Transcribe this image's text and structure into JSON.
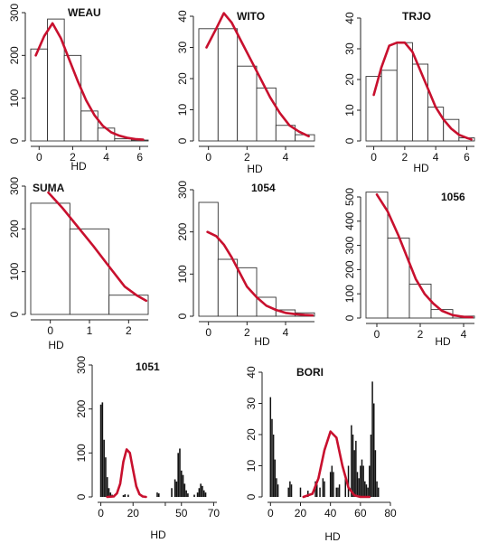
{
  "figure": {
    "colors": {
      "bar_edge": "#333333",
      "bar_fill_solid": "#111111",
      "curve": "#c8102e"
    }
  },
  "chart_data": [
    {
      "type": "bar",
      "title": "WEAU",
      "xlabel": "HD",
      "xlim": [
        -0.5,
        6.5
      ],
      "ylim": [
        0,
        300
      ],
      "xticks": [
        0,
        2,
        4,
        6
      ],
      "yticks": [
        0,
        100,
        200,
        300
      ],
      "bins": [
        [
          -0.5,
          0.5,
          215
        ],
        [
          0.5,
          1.5,
          285
        ],
        [
          1.5,
          2.5,
          200
        ],
        [
          2.5,
          3.5,
          70
        ],
        [
          3.5,
          4.5,
          30
        ],
        [
          4.5,
          5.5,
          5
        ],
        [
          5.5,
          6.5,
          2
        ]
      ],
      "curve": [
        [
          -0.2,
          200
        ],
        [
          0.3,
          245
        ],
        [
          0.8,
          275
        ],
        [
          1.3,
          240
        ],
        [
          1.8,
          190
        ],
        [
          2.3,
          140
        ],
        [
          2.8,
          95
        ],
        [
          3.3,
          60
        ],
        [
          3.8,
          35
        ],
        [
          4.3,
          20
        ],
        [
          4.8,
          12
        ],
        [
          5.3,
          7
        ],
        [
          5.8,
          4
        ],
        [
          6.2,
          3
        ]
      ]
    },
    {
      "type": "bar",
      "title": "WITO",
      "xlabel": "HD",
      "xlim": [
        -0.5,
        5.5
      ],
      "ylim": [
        0,
        40
      ],
      "xticks": [
        0,
        2,
        4
      ],
      "yticks": [
        0,
        10,
        20,
        30,
        40
      ],
      "bins": [
        [
          -0.5,
          0.5,
          36
        ],
        [
          0.5,
          1.5,
          36
        ],
        [
          1.5,
          2.5,
          24
        ],
        [
          2.5,
          3.5,
          17
        ],
        [
          3.5,
          4.5,
          5
        ],
        [
          4.5,
          5.5,
          2
        ]
      ],
      "curve": [
        [
          -0.1,
          30
        ],
        [
          0.4,
          36
        ],
        [
          0.8,
          41
        ],
        [
          1.2,
          38
        ],
        [
          1.7,
          32
        ],
        [
          2.2,
          26
        ],
        [
          2.7,
          20
        ],
        [
          3.2,
          14
        ],
        [
          3.7,
          9
        ],
        [
          4.2,
          5
        ],
        [
          4.7,
          3
        ],
        [
          5.2,
          1.5
        ]
      ]
    },
    {
      "type": "bar",
      "title": "TRJO",
      "xlabel": "HD",
      "xlim": [
        -0.5,
        6.5
      ],
      "ylim": [
        0,
        40
      ],
      "xticks": [
        0,
        2,
        4,
        6
      ],
      "yticks": [
        0,
        10,
        20,
        30,
        40
      ],
      "bins": [
        [
          -0.5,
          0.5,
          21
        ],
        [
          0.5,
          1.5,
          23
        ],
        [
          1.5,
          2.5,
          32
        ],
        [
          2.5,
          3.5,
          25
        ],
        [
          3.5,
          4.5,
          11
        ],
        [
          4.5,
          5.5,
          7
        ],
        [
          5.5,
          6.5,
          1
        ]
      ],
      "curve": [
        [
          0,
          15
        ],
        [
          0.5,
          24
        ],
        [
          1,
          31
        ],
        [
          1.5,
          32
        ],
        [
          2,
          32
        ],
        [
          2.5,
          29
        ],
        [
          3,
          23
        ],
        [
          3.5,
          17
        ],
        [
          4,
          11
        ],
        [
          4.5,
          7
        ],
        [
          5,
          4
        ],
        [
          5.5,
          2
        ],
        [
          6,
          1
        ],
        [
          6.3,
          0.5
        ]
      ]
    },
    {
      "type": "bar",
      "title": "SUMA",
      "xlabel": "HD",
      "xlim": [
        -0.5,
        2.5
      ],
      "ylim": [
        0,
        300
      ],
      "xticks": [
        0,
        1,
        2
      ],
      "yticks": [
        0,
        100,
        200,
        300
      ],
      "bins": [
        [
          -0.5,
          0.5,
          260
        ],
        [
          0.5,
          1.5,
          200
        ],
        [
          1.5,
          2.5,
          45
        ]
      ],
      "curve": [
        [
          -0.05,
          285
        ],
        [
          0.3,
          250
        ],
        [
          0.7,
          205
        ],
        [
          1.1,
          160
        ],
        [
          1.5,
          112
        ],
        [
          1.9,
          65
        ],
        [
          2.2,
          45
        ],
        [
          2.45,
          32
        ]
      ]
    },
    {
      "type": "bar",
      "title": "1054",
      "xlabel": "HD",
      "xlim": [
        -0.5,
        5.5
      ],
      "ylim": [
        0,
        300
      ],
      "xticks": [
        0,
        2,
        4
      ],
      "yticks": [
        0,
        100,
        200,
        300
      ],
      "bins": [
        [
          -0.5,
          0.5,
          270
        ],
        [
          0.5,
          1.5,
          135
        ],
        [
          1.5,
          2.5,
          115
        ],
        [
          2.5,
          3.5,
          45
        ],
        [
          3.5,
          4.5,
          15
        ],
        [
          4.5,
          5.5,
          8
        ]
      ],
      "curve": [
        [
          -0.05,
          200
        ],
        [
          0.4,
          190
        ],
        [
          0.8,
          170
        ],
        [
          1.2,
          140
        ],
        [
          1.6,
          105
        ],
        [
          2.0,
          70
        ],
        [
          2.5,
          45
        ],
        [
          3.0,
          25
        ],
        [
          3.5,
          15
        ],
        [
          4.0,
          8
        ],
        [
          4.5,
          5
        ],
        [
          5.0,
          3
        ],
        [
          5.4,
          2
        ]
      ]
    },
    {
      "type": "bar",
      "title": "1056",
      "xlabel": "HD",
      "xlim": [
        -0.5,
        4.5
      ],
      "ylim": [
        0,
        500
      ],
      "xticks": [
        0,
        2,
        4
      ],
      "yticks": [
        0,
        100,
        200,
        300,
        400,
        500
      ],
      "bins": [
        [
          -0.5,
          0.5,
          520
        ],
        [
          0.5,
          1.5,
          330
        ],
        [
          1.5,
          2.5,
          140
        ],
        [
          2.5,
          3.5,
          35
        ],
        [
          3.5,
          4.5,
          8
        ]
      ],
      "curve": [
        [
          0,
          510
        ],
        [
          0.5,
          440
        ],
        [
          1.0,
          340
        ],
        [
          1.4,
          250
        ],
        [
          1.8,
          160
        ],
        [
          2.2,
          100
        ],
        [
          2.6,
          60
        ],
        [
          3.0,
          30
        ],
        [
          3.5,
          12
        ],
        [
          4.0,
          5
        ],
        [
          4.4,
          3
        ]
      ]
    },
    {
      "type": "bar",
      "title": "1051",
      "xlabel": "HD",
      "xlim": [
        -2,
        72
      ],
      "ylim": [
        0,
        300
      ],
      "xticks": [
        0,
        20,
        40,
        50,
        70
      ],
      "yticks": [
        0,
        100,
        200,
        300
      ],
      "xticklabels": [
        "0",
        "20",
        "",
        "50",
        "70"
      ],
      "spikes": [
        [
          0,
          210
        ],
        [
          1,
          215
        ],
        [
          2,
          130
        ],
        [
          3,
          90
        ],
        [
          4,
          45
        ],
        [
          5,
          20
        ],
        [
          6,
          10
        ],
        [
          7,
          5
        ],
        [
          14,
          4
        ],
        [
          15,
          6
        ],
        [
          17,
          5
        ],
        [
          35,
          10
        ],
        [
          36,
          8
        ],
        [
          44,
          20
        ],
        [
          46,
          40
        ],
        [
          47,
          35
        ],
        [
          48,
          100
        ],
        [
          49,
          110
        ],
        [
          50,
          60
        ],
        [
          51,
          50
        ],
        [
          52,
          30
        ],
        [
          53,
          15
        ],
        [
          54,
          8
        ],
        [
          58,
          5
        ],
        [
          60,
          10
        ],
        [
          61,
          20
        ],
        [
          62,
          30
        ],
        [
          63,
          25
        ],
        [
          64,
          15
        ],
        [
          65,
          10
        ]
      ],
      "curve": [
        [
          4,
          0
        ],
        [
          8,
          1
        ],
        [
          10,
          8
        ],
        [
          12,
          30
        ],
        [
          14,
          80
        ],
        [
          16,
          108
        ],
        [
          18,
          100
        ],
        [
          20,
          62
        ],
        [
          22,
          24
        ],
        [
          24,
          6
        ],
        [
          26,
          1
        ],
        [
          28,
          0
        ]
      ]
    },
    {
      "type": "bar",
      "title": "BORI",
      "xlabel": "HD",
      "xlim": [
        -2,
        80
      ],
      "ylim": [
        0,
        40
      ],
      "xticks": [
        0,
        20,
        40,
        60,
        80
      ],
      "yticks": [
        0,
        10,
        20,
        30,
        40
      ],
      "spikes": [
        [
          0,
          32
        ],
        [
          1,
          25
        ],
        [
          2,
          20
        ],
        [
          3,
          12
        ],
        [
          4,
          6
        ],
        [
          5,
          4
        ],
        [
          12,
          3
        ],
        [
          13,
          5
        ],
        [
          14,
          4
        ],
        [
          20,
          3
        ],
        [
          25,
          2
        ],
        [
          30,
          5
        ],
        [
          31,
          4
        ],
        [
          33,
          3
        ],
        [
          35,
          6
        ],
        [
          36,
          5
        ],
        [
          40,
          8
        ],
        [
          41,
          10
        ],
        [
          42,
          8
        ],
        [
          44,
          3
        ],
        [
          45,
          3
        ],
        [
          46,
          4
        ],
        [
          50,
          6
        ],
        [
          52,
          10
        ],
        [
          54,
          23
        ],
        [
          55,
          20
        ],
        [
          56,
          15
        ],
        [
          57,
          18
        ],
        [
          58,
          8
        ],
        [
          59,
          6
        ],
        [
          60,
          10
        ],
        [
          61,
          12
        ],
        [
          62,
          10
        ],
        [
          63,
          5
        ],
        [
          64,
          4
        ],
        [
          65,
          3
        ],
        [
          66,
          10
        ],
        [
          67,
          20
        ],
        [
          68,
          37
        ],
        [
          69,
          30
        ],
        [
          70,
          15
        ],
        [
          71,
          5
        ],
        [
          72,
          3
        ]
      ],
      "curve": [
        [
          22,
          0
        ],
        [
          28,
          1
        ],
        [
          32,
          6
        ],
        [
          36,
          15
        ],
        [
          40,
          21
        ],
        [
          44,
          19
        ],
        [
          48,
          10
        ],
        [
          52,
          3
        ],
        [
          56,
          0.5
        ],
        [
          60,
          0
        ],
        [
          66,
          0
        ]
      ]
    }
  ]
}
